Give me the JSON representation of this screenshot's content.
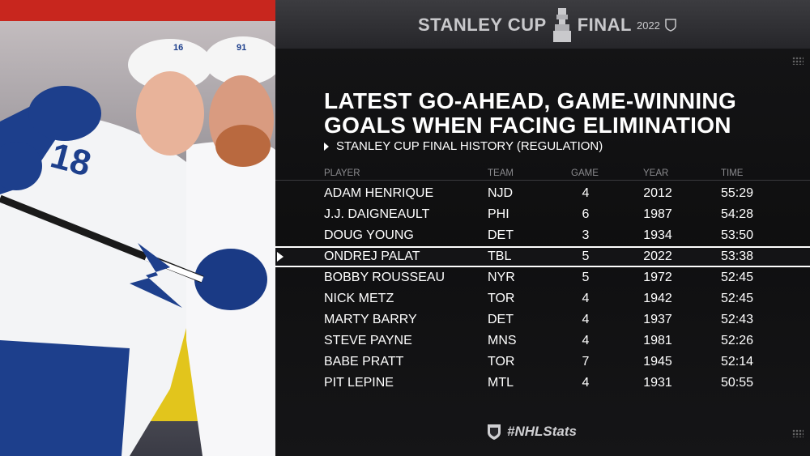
{
  "brand": {
    "word1": "STANLEY CUP",
    "word2": "FINAL",
    "year": "2022"
  },
  "heading": {
    "line1": "LATEST GO-AHEAD, GAME-WINNING",
    "line2": "GOALS WHEN FACING ELIMINATION"
  },
  "subheading": "STANLEY CUP FINAL HISTORY (REGULATION)",
  "columns": {
    "player": "PLAYER",
    "team": "TEAM",
    "game": "GAME",
    "year": "YEAR",
    "time": "TIME"
  },
  "photo": {
    "jersey1": "16",
    "jersey2": "91",
    "jersey3": "18"
  },
  "rows": [
    {
      "player": "ADAM HENRIQUE",
      "team": "NJD",
      "game": "4",
      "year": "2012",
      "time": "55:29"
    },
    {
      "player": "J.J. DAIGNEAULT",
      "team": "PHI",
      "game": "6",
      "year": "1987",
      "time": "54:28"
    },
    {
      "player": "DOUG YOUNG",
      "team": "DET",
      "game": "3",
      "year": "1934",
      "time": "53:50"
    },
    {
      "player": "ONDREJ PALAT",
      "team": "TBL",
      "game": "5",
      "year": "2022",
      "time": "53:38"
    },
    {
      "player": "BOBBY ROUSSEAU",
      "team": "NYR",
      "game": "5",
      "year": "1972",
      "time": "52:45"
    },
    {
      "player": "NICK METZ",
      "team": "TOR",
      "game": "4",
      "year": "1942",
      "time": "52:45"
    },
    {
      "player": "MARTY BARRY",
      "team": "DET",
      "game": "4",
      "year": "1937",
      "time": "52:43"
    },
    {
      "player": "STEVE PAYNE",
      "team": "MNS",
      "game": "4",
      "year": "1981",
      "time": "52:26"
    },
    {
      "player": "BABE PRATT",
      "team": "TOR",
      "game": "7",
      "year": "1945",
      "time": "52:14"
    },
    {
      "player": "PIT LEPINE",
      "team": "MTL",
      "game": "4",
      "year": "1931",
      "time": "50:55"
    }
  ],
  "highlighted_row": 3,
  "footer": "#NHLStats",
  "colors": {
    "background": "#0d0d0e",
    "text": "#ffffff",
    "header_text": "#8a8a8e",
    "jersey_blue": "#1d3f8c"
  }
}
